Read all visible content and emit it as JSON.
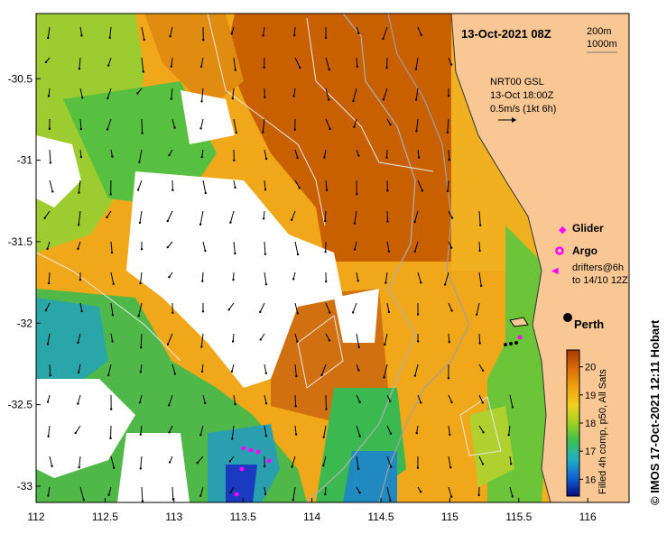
{
  "title": "13-Oct-2021 08Z",
  "scale_labels": {
    "first": "200m",
    "second": "1000m"
  },
  "current_info": {
    "line1": "NRT00 GSL",
    "line2": "13-Oct 18:00Z",
    "line3": "0.5m/s (1kt 6h)"
  },
  "legend": {
    "glider": "Glider",
    "argo": "Argo",
    "drifters_line1": "drifters@6h",
    "drifters_line2": "to 14/10 12Z"
  },
  "city_label": "Perth",
  "colorbar": {
    "ticks": [
      "20",
      "19",
      "18",
      "17",
      "16"
    ],
    "caption": "Filled 4h comp, p50, All Sats"
  },
  "credit": "© IMOS 17-Oct-2021 12:11 Hobart",
  "axes": {
    "x_ticks": [
      "112",
      "112.5",
      "113",
      "113.5",
      "114",
      "114.5",
      "115",
      "115.5",
      "116"
    ],
    "y_ticks": [
      "-30.5",
      "-31",
      "-31.5",
      "-32",
      "-32.5",
      "-33"
    ],
    "x_range": [
      112,
      116.3
    ],
    "y_range": [
      -33.1,
      -30.1
    ]
  },
  "colors": {
    "land": "#f9c794",
    "warm": "#c85e00",
    "mid": "#e8a00a",
    "cool": "#3bb84a",
    "cold": "#1e8fb5",
    "argo": "#ff00ff"
  }
}
